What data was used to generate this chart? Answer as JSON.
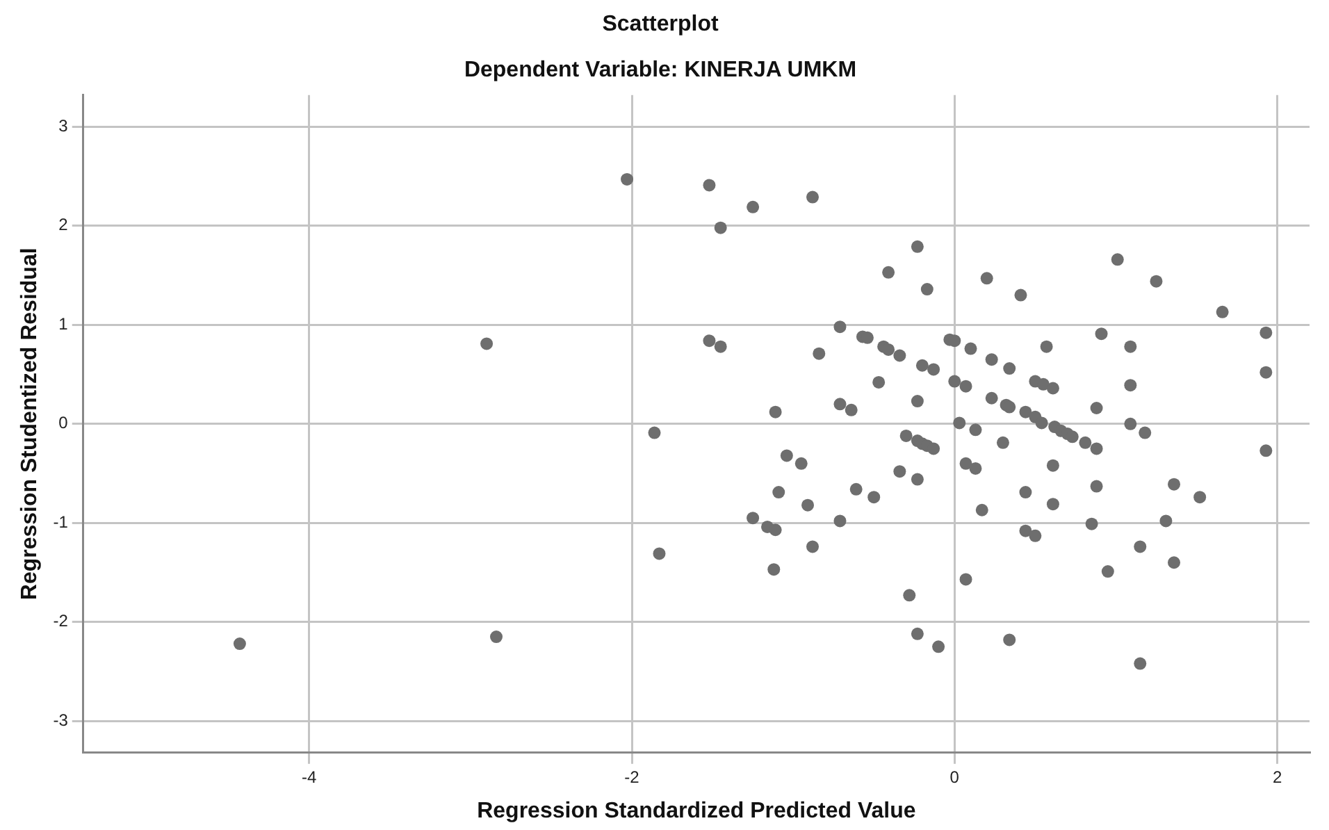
{
  "chart_data": {
    "type": "scatter",
    "title": "Scatterplot",
    "subtitle": "Dependent Variable: KINERJA UMKM",
    "xlabel": "Regression Standardized Predicted Value",
    "ylabel": "Regression Studentized Residual",
    "xlim": [
      -5.4,
      2.2
    ],
    "ylim": [
      -3.32,
      3.32
    ],
    "xticks": [
      -4,
      -2,
      0,
      2
    ],
    "yticks": [
      -3,
      -2,
      -1,
      0,
      1,
      2,
      3
    ],
    "grid": true,
    "marker": "circle",
    "legend": false,
    "series": [
      {
        "color": "#6e6e6e",
        "x": [
          -4.43,
          -2.9,
          -2.84,
          -2.03,
          -1.86,
          -1.83,
          -1.52,
          -1.45,
          -1.52,
          -1.45,
          -1.25,
          -0.88,
          -1.11,
          -1.04,
          -0.95,
          -1.09,
          -0.91,
          -1.25,
          -1.16,
          -1.11,
          -0.71,
          -0.88,
          -1.12,
          -0.61,
          -0.5,
          -0.34,
          -0.23,
          -0.3,
          -0.23,
          -0.2,
          -0.17,
          -0.13,
          0.03,
          0.13,
          0.07,
          0.13,
          0.17,
          0.07,
          -0.28,
          -0.23,
          -0.1,
          0.3,
          -0.23,
          -0.41,
          -0.17,
          0.2,
          -0.71,
          -0.84,
          -0.57,
          -0.54,
          -0.44,
          -0.41,
          -0.34,
          -0.2,
          -0.13,
          -0.03,
          0.0,
          0.1,
          0.23,
          -0.47,
          0.0,
          0.07,
          0.23,
          -0.71,
          -0.64,
          -0.23,
          1.01,
          1.25,
          0.41,
          1.66,
          1.93,
          1.93,
          0.91,
          1.09,
          0.57,
          0.34,
          0.5,
          0.55,
          0.61,
          1.09,
          0.32,
          0.34,
          0.44,
          0.5,
          0.88,
          0.54,
          0.62,
          0.66,
          0.7,
          0.73,
          0.81,
          0.88,
          1.09,
          1.18,
          1.93,
          0.61,
          0.44,
          0.61,
          0.88,
          0.44,
          0.5,
          0.85,
          1.36,
          1.52,
          1.31,
          1.15,
          1.36,
          0.95,
          0.34,
          1.15
        ],
        "values": [
          -2.22,
          0.81,
          -2.15,
          2.47,
          -0.09,
          -1.31,
          2.41,
          1.98,
          0.84,
          0.78,
          2.19,
          2.29,
          0.12,
          -0.32,
          -0.4,
          -0.69,
          -0.82,
          -0.95,
          -1.04,
          -1.07,
          -0.98,
          -1.24,
          -1.47,
          -0.66,
          -0.74,
          -0.48,
          -0.56,
          -0.12,
          -0.17,
          -0.2,
          -0.22,
          -0.25,
          0.01,
          -0.06,
          -0.4,
          -0.45,
          -0.87,
          -1.57,
          -1.73,
          -2.12,
          -2.25,
          -0.19,
          1.79,
          1.53,
          1.36,
          1.47,
          0.98,
          0.71,
          0.88,
          0.87,
          0.78,
          0.75,
          0.69,
          0.59,
          0.55,
          0.85,
          0.84,
          0.76,
          0.65,
          0.42,
          0.43,
          0.38,
          0.26,
          0.2,
          0.14,
          0.23,
          1.66,
          1.44,
          1.3,
          1.13,
          0.92,
          0.52,
          0.91,
          0.78,
          0.78,
          0.56,
          0.43,
          0.4,
          0.36,
          0.39,
          0.19,
          0.17,
          0.12,
          0.07,
          0.16,
          0.01,
          -0.03,
          -0.07,
          -0.1,
          -0.13,
          -0.19,
          -0.25,
          0.0,
          -0.09,
          -0.27,
          -0.42,
          -0.69,
          -0.81,
          -0.63,
          -1.08,
          -1.13,
          -1.01,
          -0.61,
          -0.74,
          -0.98,
          -1.24,
          -1.4,
          -1.49,
          -2.18,
          -2.42
        ]
      }
    ]
  }
}
